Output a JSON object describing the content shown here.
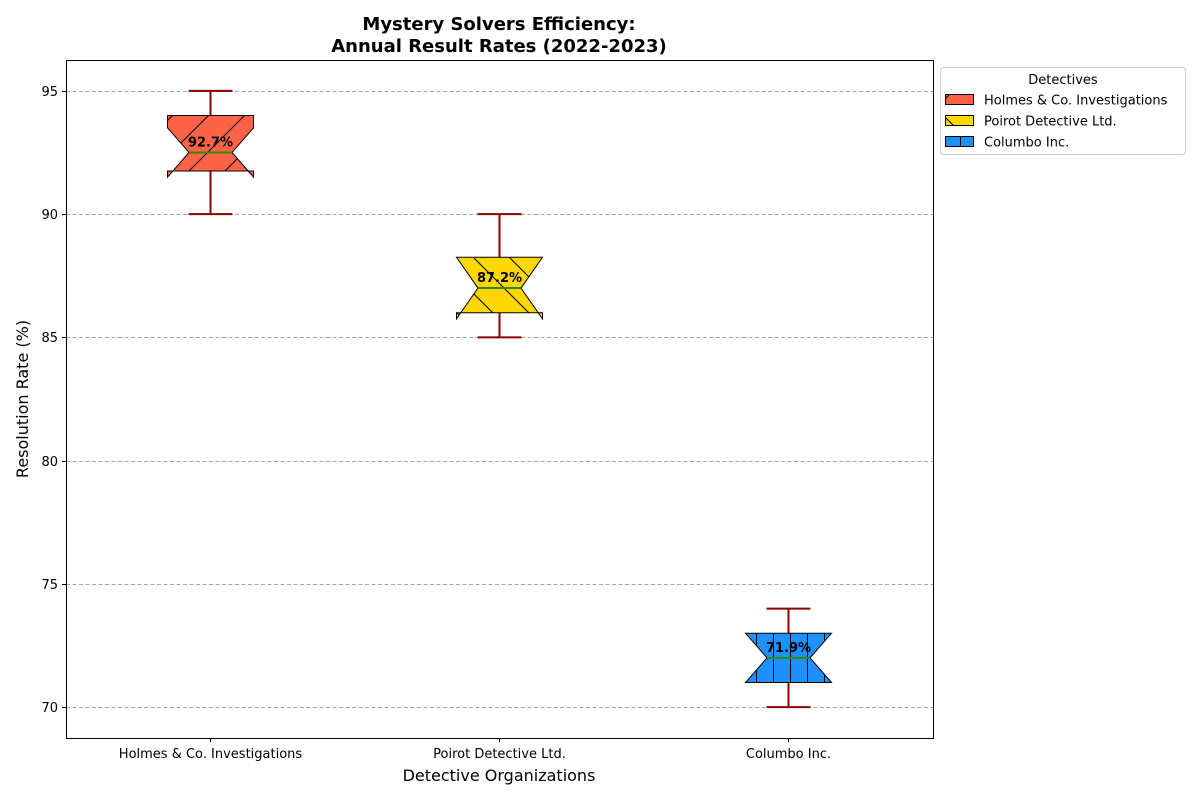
{
  "chart_data": {
    "type": "box",
    "title_line1": "Mystery Solvers Efficiency:",
    "title_line2": "Annual Result Rates (2022-2023)",
    "xlabel": "Detective Organizations",
    "ylabel": "Resolution Rate (%)",
    "ylim": [
      68.75,
      96.25
    ],
    "yticks": [
      "70",
      "75",
      "80",
      "85",
      "90",
      "95"
    ],
    "grid": "horizontal-dashed",
    "legend_title": "Detectives",
    "legend_position": "outside-upper-right",
    "categories": [
      "Holmes & Co. Investigations",
      "Poirot Detective Ltd.",
      "Columbo Inc."
    ],
    "series": [
      {
        "name": "Holmes & Co. Investigations",
        "whisker_low": 90,
        "q1": 91.75,
        "median": 92.5,
        "q3": 94,
        "whisker_high": 95,
        "notch_low": 91.5,
        "notch_high": 93.5,
        "mean_label": "92.7%",
        "color": "#ff6347",
        "hatch": "/"
      },
      {
        "name": "Poirot Detective Ltd.",
        "whisker_low": 85,
        "q1": 86,
        "median": 87,
        "q3": 88.25,
        "whisker_high": 90,
        "notch_low": 85.75,
        "notch_high": 88.25,
        "mean_label": "87.2%",
        "color": "#ffd700",
        "hatch": "\\"
      },
      {
        "name": "Columbo Inc.",
        "whisker_low": 70,
        "q1": 71,
        "median": 72,
        "q3": 73,
        "whisker_high": 74,
        "notch_low": 71,
        "notch_high": 73,
        "mean_label": "71.9%",
        "color": "#1e90ff",
        "hatch": "|"
      }
    ],
    "colors": {
      "whisker": "#8b0000",
      "median": "#2e8b00",
      "edge": "#000000",
      "grid": "#a6a6a6"
    }
  }
}
